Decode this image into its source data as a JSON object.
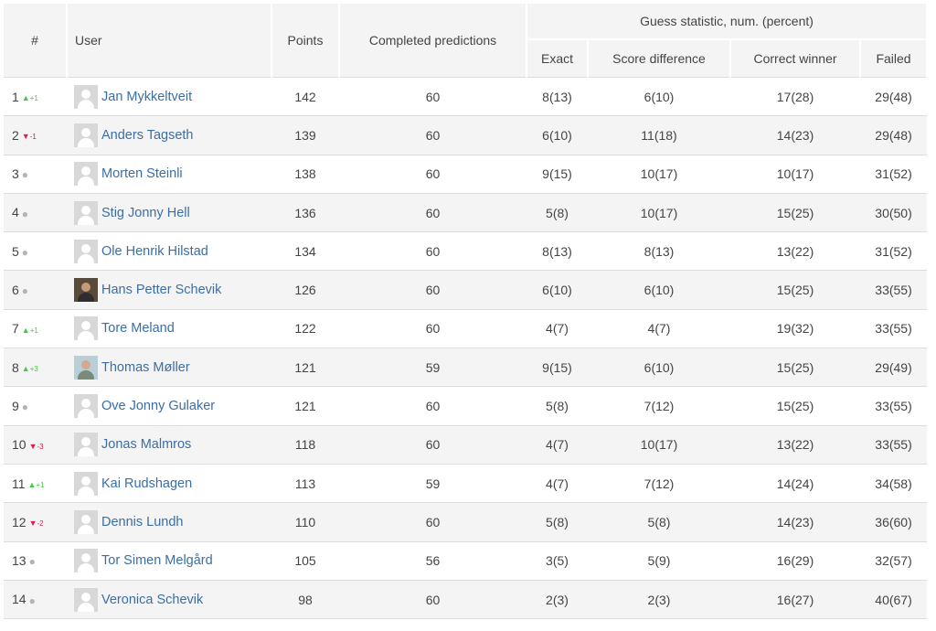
{
  "header": {
    "rank": "#",
    "user": "User",
    "points": "Points",
    "completed": "Completed predictions",
    "guess_group": "Guess statistic, num. (percent)",
    "exact": "Exact",
    "score_diff": "Score difference",
    "correct_winner": "Correct winner",
    "failed": "Failed"
  },
  "rows": [
    {
      "rank": "1",
      "trend": "up",
      "change": "+1",
      "name": "Jan Mykkeltveit",
      "avatar": "default-avatar",
      "points": "142",
      "completed": "60",
      "exact": "8(13)",
      "score_diff": "6(10)",
      "correct_winner": "17(28)",
      "failed": "29(48)"
    },
    {
      "rank": "2",
      "trend": "down",
      "change": "-1",
      "name": "Anders Tagseth",
      "avatar": "default-avatar",
      "points": "139",
      "completed": "60",
      "exact": "6(10)",
      "score_diff": "11(18)",
      "correct_winner": "14(23)",
      "failed": "29(48)"
    },
    {
      "rank": "3",
      "trend": "same",
      "change": "",
      "name": "Morten Steinli",
      "avatar": "default-avatar",
      "points": "138",
      "completed": "60",
      "exact": "9(15)",
      "score_diff": "10(17)",
      "correct_winner": "10(17)",
      "failed": "31(52)"
    },
    {
      "rank": "4",
      "trend": "same",
      "change": "",
      "name": "Stig Jonny Hell",
      "avatar": "default-avatar",
      "points": "136",
      "completed": "60",
      "exact": "5(8)",
      "score_diff": "10(17)",
      "correct_winner": "15(25)",
      "failed": "30(50)"
    },
    {
      "rank": "5",
      "trend": "same",
      "change": "",
      "name": "Ole Henrik Hilstad",
      "avatar": "default-avatar",
      "points": "134",
      "completed": "60",
      "exact": "8(13)",
      "score_diff": "8(13)",
      "correct_winner": "13(22)",
      "failed": "31(52)"
    },
    {
      "rank": "6",
      "trend": "same",
      "change": "",
      "name": "Hans Petter Schevik",
      "avatar": "photo1",
      "points": "126",
      "completed": "60",
      "exact": "6(10)",
      "score_diff": "6(10)",
      "correct_winner": "15(25)",
      "failed": "33(55)"
    },
    {
      "rank": "7",
      "trend": "up",
      "change": "+1",
      "name": "Tore Meland",
      "avatar": "default-avatar",
      "points": "122",
      "completed": "60",
      "exact": "4(7)",
      "score_diff": "4(7)",
      "correct_winner": "19(32)",
      "failed": "33(55)"
    },
    {
      "rank": "8",
      "trend": "up",
      "change": "+3",
      "name": "Thomas Møller",
      "avatar": "photo2",
      "points": "121",
      "completed": "59",
      "exact": "9(15)",
      "score_diff": "6(10)",
      "correct_winner": "15(25)",
      "failed": "29(49)"
    },
    {
      "rank": "9",
      "trend": "same",
      "change": "",
      "name": "Ove Jonny Gulaker",
      "avatar": "default-avatar",
      "points": "121",
      "completed": "60",
      "exact": "5(8)",
      "score_diff": "7(12)",
      "correct_winner": "15(25)",
      "failed": "33(55)"
    },
    {
      "rank": "10",
      "trend": "down",
      "change": "-3",
      "name": "Jonas Malmros",
      "avatar": "default-avatar",
      "points": "118",
      "completed": "60",
      "exact": "4(7)",
      "score_diff": "10(17)",
      "correct_winner": "13(22)",
      "failed": "33(55)"
    },
    {
      "rank": "11",
      "trend": "up",
      "change": "+1",
      "name": "Kai Rudshagen",
      "avatar": "default-avatar",
      "points": "113",
      "completed": "59",
      "exact": "4(7)",
      "score_diff": "7(12)",
      "correct_winner": "14(24)",
      "failed": "34(58)"
    },
    {
      "rank": "12",
      "trend": "down",
      "change": "-2",
      "name": "Dennis Lundh",
      "avatar": "default-avatar",
      "points": "110",
      "completed": "60",
      "exact": "5(8)",
      "score_diff": "5(8)",
      "correct_winner": "14(23)",
      "failed": "36(60)"
    },
    {
      "rank": "13",
      "trend": "same",
      "change": "",
      "name": "Tor Simen Melgård",
      "avatar": "default-avatar",
      "points": "105",
      "completed": "56",
      "exact": "3(5)",
      "score_diff": "5(9)",
      "correct_winner": "16(29)",
      "failed": "32(57)"
    },
    {
      "rank": "14",
      "trend": "same",
      "change": "",
      "name": "Veronica Schevik",
      "avatar": "default-avatar",
      "points": "98",
      "completed": "60",
      "exact": "2(3)",
      "score_diff": "2(3)",
      "correct_winner": "16(27)",
      "failed": "40(67)"
    }
  ],
  "colors": {
    "up": "#3fcc3f",
    "down": "#d9204f",
    "same": "#b4b4b4",
    "link": "#3b6ea5",
    "header_bg": "#f4f4f4"
  }
}
